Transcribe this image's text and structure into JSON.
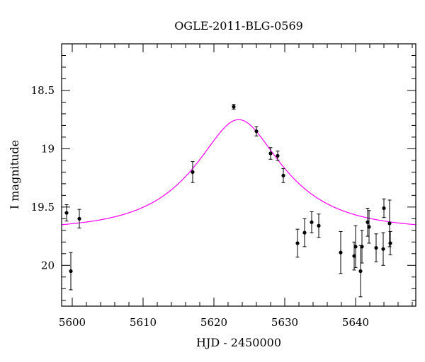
{
  "chart_data": {
    "type": "scatter",
    "title": "OGLE-2011-BLG-0569",
    "xlabel": "HJD - 2450000",
    "ylabel": "I magnitude",
    "xlim": [
      5598.5,
      5648.5
    ],
    "ylim": [
      20.35,
      18.1
    ],
    "y_inverted": true,
    "grid": false,
    "x_major_ticks": [
      5600,
      5610,
      5620,
      5630,
      5640
    ],
    "x_minor_step": 2,
    "y_major_ticks": [
      18.5,
      19,
      19.5,
      20
    ],
    "y_minor_step": 0.1,
    "x_tick_labels": [
      "5600",
      "5610",
      "5620",
      "5630",
      "5640"
    ],
    "y_tick_labels": [
      "18.5",
      "19",
      "19.5",
      "20"
    ],
    "colors": {
      "model": "#ff00ff",
      "points": "#000000"
    },
    "series": [
      {
        "type": "scatter_errorbar",
        "points": [
          {
            "x": 5599.2,
            "y": 19.55,
            "err": 0.07
          },
          {
            "x": 5599.8,
            "y": 20.05,
            "err": 0.16
          },
          {
            "x": 5601.0,
            "y": 19.6,
            "err": 0.08
          },
          {
            "x": 5617.0,
            "y": 19.2,
            "err": 0.09
          },
          {
            "x": 5622.8,
            "y": 18.64,
            "err": 0.02
          },
          {
            "x": 5626.0,
            "y": 18.85,
            "err": 0.04
          },
          {
            "x": 5628.0,
            "y": 19.04,
            "err": 0.05
          },
          {
            "x": 5629.0,
            "y": 19.06,
            "err": 0.04
          },
          {
            "x": 5629.8,
            "y": 19.23,
            "err": 0.06
          },
          {
            "x": 5631.8,
            "y": 19.81,
            "err": 0.12
          },
          {
            "x": 5632.8,
            "y": 19.72,
            "err": 0.12
          },
          {
            "x": 5633.8,
            "y": 19.63,
            "err": 0.09
          },
          {
            "x": 5634.8,
            "y": 19.66,
            "err": 0.1
          },
          {
            "x": 5637.9,
            "y": 19.89,
            "err": 0.18
          },
          {
            "x": 5639.8,
            "y": 19.92,
            "err": 0.12
          },
          {
            "x": 5640.0,
            "y": 19.84,
            "err": 0.18
          },
          {
            "x": 5640.7,
            "y": 20.05,
            "err": 0.22
          },
          {
            "x": 5640.9,
            "y": 19.84,
            "err": 0.14
          },
          {
            "x": 5641.7,
            "y": 19.63,
            "err": 0.12
          },
          {
            "x": 5641.9,
            "y": 19.67,
            "err": 0.14
          },
          {
            "x": 5642.9,
            "y": 19.85,
            "err": 0.12
          },
          {
            "x": 5643.9,
            "y": 19.86,
            "err": 0.14
          },
          {
            "x": 5644.0,
            "y": 19.51,
            "err": 0.08
          },
          {
            "x": 5644.8,
            "y": 19.64,
            "err": 0.2
          },
          {
            "x": 5644.9,
            "y": 19.81,
            "err": 0.1
          }
        ]
      },
      {
        "type": "model_curve",
        "model": {
          "t0": 5623.5,
          "u0": 0.45,
          "tE": 11.2,
          "baseline_mag": 19.695
        }
      }
    ]
  }
}
